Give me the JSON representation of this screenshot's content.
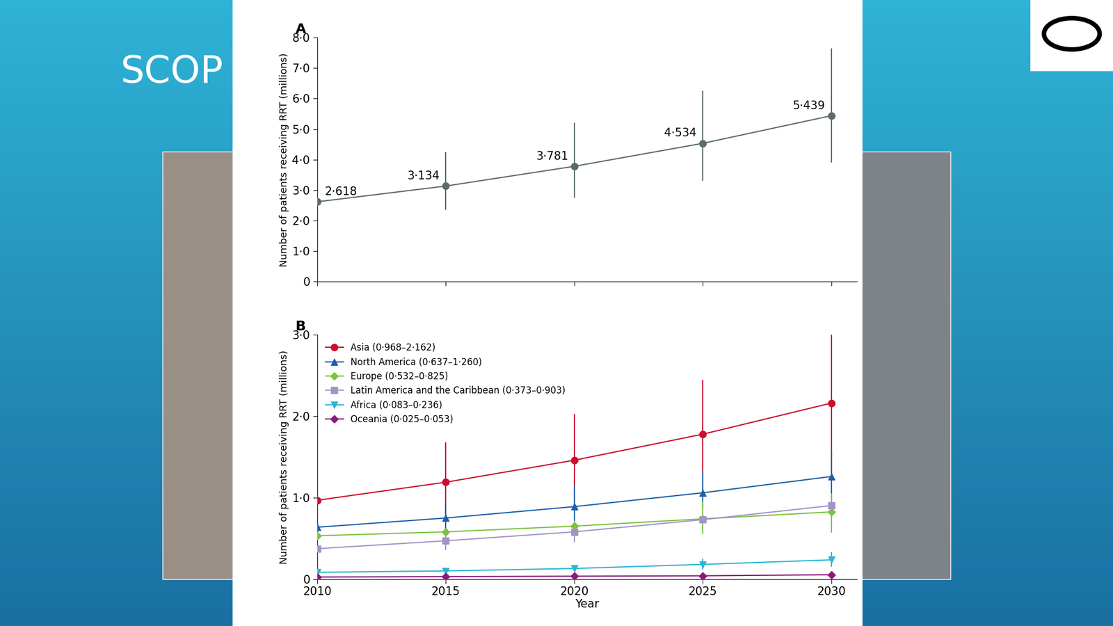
{
  "slide_title": "SCOP",
  "chart_data": [
    {
      "type": "line",
      "title": "A",
      "y_label": "Number of patients receiving RRT (millions)",
      "x": [
        2010,
        2015,
        2020,
        2025,
        2030
      ],
      "values": [
        2.618,
        3.134,
        3.781,
        4.534,
        5.439
      ],
      "value_labels": [
        "2·618",
        "3·134",
        "3·781",
        "4·534",
        "5·439"
      ],
      "lower": [
        null,
        2.35,
        2.75,
        3.3,
        3.9
      ],
      "upper": [
        null,
        4.25,
        5.2,
        6.25,
        7.65
      ],
      "data_labels": true,
      "color": "#5b6b6e",
      "marker": "circle",
      "line_style": "solid",
      "xlim": [
        2010,
        2031
      ],
      "xticks": [
        2010,
        2015,
        2020,
        2025,
        2030
      ],
      "ylim": [
        0,
        8
      ],
      "yticks": [
        0,
        {
          "value": 1,
          "label": "1·0"
        },
        {
          "value": 2,
          "label": "2·0"
        },
        {
          "value": 3,
          "label": "3·0"
        },
        {
          "value": 4,
          "label": "4·0"
        },
        {
          "value": 5,
          "label": "5·0"
        },
        {
          "value": 6,
          "label": "6·0"
        },
        {
          "value": 7,
          "label": "7·0"
        },
        {
          "value": 8,
          "label": "8·0"
        }
      ],
      "tick_labels": "y"
    },
    {
      "type": "line",
      "title": "B",
      "y_label": "Number of patients receiving RRT (millions)",
      "x_label": "Year",
      "x": [
        2010,
        2015,
        2020,
        2025,
        2030
      ],
      "series": [
        {
          "name": "Asia (0·968–2·162)",
          "color": "#c8102e",
          "marker": "circle",
          "line_style": "solid",
          "values": [
            0.968,
            1.19,
            1.46,
            1.78,
            2.162
          ],
          "lower": [
            null,
            0.75,
            0.9,
            1.1,
            1.3
          ],
          "upper": [
            null,
            1.68,
            2.03,
            2.45,
            3.05
          ]
        },
        {
          "name": "North America (0·637–1·260)",
          "color": "#1f5fa6",
          "marker": "triangle_up",
          "line_style": "solid",
          "values": [
            0.637,
            0.75,
            0.89,
            1.06,
            1.26
          ],
          "lower": [
            null,
            0.6,
            0.7,
            0.85,
            0.95
          ],
          "upper": [
            null,
            0.95,
            1.15,
            1.32,
            1.57
          ]
        },
        {
          "name": "Europe (0·532–0·825)",
          "color": "#7cc242",
          "marker": "diamond",
          "line_style": "solid",
          "values": [
            0.532,
            0.58,
            0.65,
            0.74,
            0.825
          ],
          "lower": [
            null,
            null,
            null,
            0.55,
            0.57
          ],
          "upper": [
            null,
            null,
            null,
            0.95,
            1.05
          ]
        },
        {
          "name": "Latin America and the Caribbean (0·373–0·903)",
          "color": "#a393c7",
          "marker": "square",
          "line_style": "solid",
          "values": [
            0.373,
            0.47,
            0.58,
            0.73,
            0.903
          ],
          "lower": [
            null,
            0.36,
            0.45,
            null,
            null
          ],
          "upper": [
            null,
            0.57,
            0.72,
            null,
            null
          ]
        },
        {
          "name": "Africa (0·083–0·236)",
          "color": "#2bb5d4",
          "marker": "triangle_down",
          "line_style": "solid",
          "values": [
            0.083,
            0.1,
            0.13,
            0.18,
            0.236
          ],
          "lower": [
            null,
            null,
            null,
            0.12,
            0.15
          ],
          "upper": [
            null,
            null,
            null,
            0.25,
            0.33
          ]
        },
        {
          "name": "Oceania (0·025–0·053)",
          "color": "#8b1a7a",
          "marker": "diamond",
          "line_style": "solid",
          "values": [
            0.025,
            0.03,
            0.035,
            0.04,
            0.053
          ]
        }
      ],
      "xlim": [
        2010,
        2031
      ],
      "xticks": [
        2010,
        2015,
        2020,
        2025,
        2030
      ],
      "ylim": [
        0,
        3
      ],
      "yticks": [
        0,
        {
          "value": 1,
          "label": "1·0"
        },
        {
          "value": 2,
          "label": "2·0"
        },
        {
          "value": 3,
          "label": "3·0"
        }
      ],
      "legend": "upper left"
    }
  ]
}
